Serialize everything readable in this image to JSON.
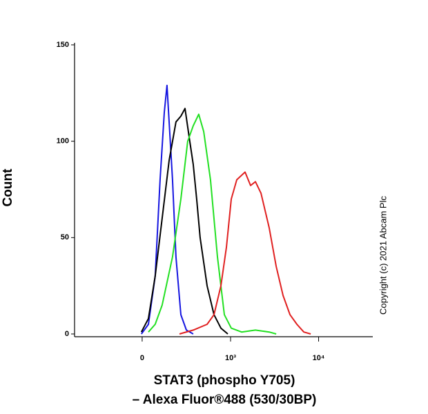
{
  "chart_data": {
    "type": "line",
    "xlabel": [
      "STAT3 (phospho Y705)",
      "– Alexa Fluor®488 (530/30BP)"
    ],
    "ylabel": "Count",
    "annotation": "Copyright (c) 2021 Abcam Plc",
    "xscale": "asinh",
    "xlim": [
      -570,
      41000
    ],
    "xticks": [
      0,
      {
        "value": 1000,
        "label": "10³"
      },
      {
        "value": 10000,
        "label": "10⁴"
      }
    ],
    "ylim": [
      0,
      150
    ],
    "yticks": [
      0,
      50,
      100,
      150
    ],
    "series": [
      {
        "color": "#1515e0",
        "x": [
          -4,
          33,
          70,
          98,
          123,
          140,
          177,
          202,
          240,
          288,
          355
        ],
        "values": [
          0,
          5,
          30,
          80,
          115,
          129,
          80,
          40,
          10,
          2,
          0
        ]
      },
      {
        "color": "#000000",
        "x": [
          -4,
          33,
          70,
          110,
          154,
          202,
          240,
          275,
          320,
          355,
          393,
          435,
          530,
          640,
          772,
          929
        ],
        "values": [
          1,
          8,
          30,
          60,
          90,
          110,
          113,
          117,
          100,
          88,
          70,
          50,
          25,
          10,
          3,
          0
        ]
      },
      {
        "color": "#22e022",
        "x": [
          33,
          70,
          110,
          177,
          240,
          300,
          355,
          418,
          482,
          581,
          703,
          847,
          1019,
          1340,
          1925,
          2763,
          3309
        ],
        "values": [
          1,
          5,
          15,
          40,
          70,
          100,
          108,
          114,
          105,
          80,
          40,
          10,
          3,
          1,
          2,
          1,
          0
        ]
      },
      {
        "color": "#e02020",
        "x": [
          229,
          355,
          530,
          640,
          772,
          896,
          1019,
          1178,
          1467,
          1696,
          1925,
          2226,
          2763,
          3309,
          3961,
          4743,
          5682,
          6801,
          8143
        ],
        "values": [
          0,
          2,
          5,
          10,
          25,
          45,
          70,
          80,
          84,
          77,
          79,
          73,
          55,
          35,
          20,
          10,
          5,
          1,
          0
        ]
      }
    ]
  }
}
